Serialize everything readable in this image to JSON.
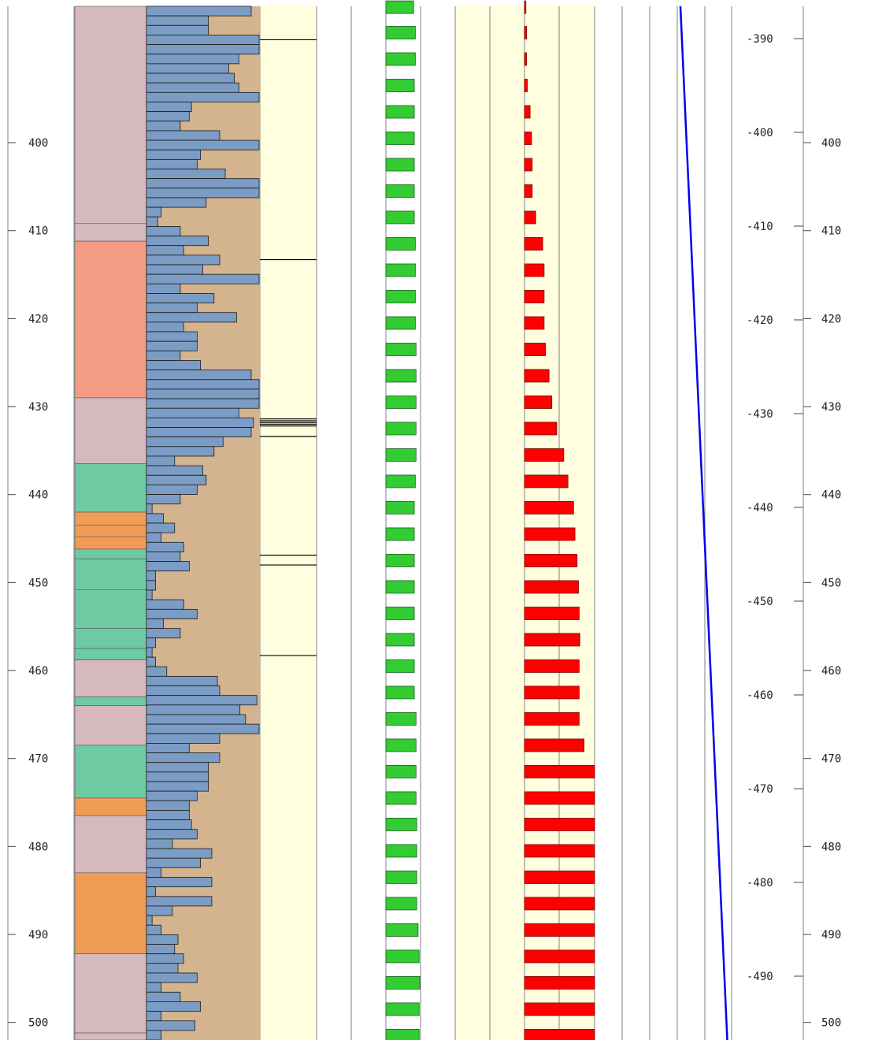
{
  "colors": {
    "lith_pink": "#d6b9bd",
    "lith_salmon": "#f29d83",
    "lith_orange": "#f09c57",
    "lith_green": "#6ecaa3",
    "grain_bg": "#d4b48e",
    "grain_bar": "#7b9cc4",
    "track_yellow": "#ffffe0",
    "green_bar": "#33cc33",
    "red_bar": "#ff0000",
    "curve_blue": "#0000ee",
    "grid": "#808080"
  },
  "chart_data": {
    "type": "well-log",
    "title": "",
    "depth_axis": {
      "label": "",
      "ticks": [
        400,
        410,
        420,
        430,
        440,
        450,
        460,
        470,
        480,
        490,
        500
      ],
      "tick_labels": [
        "400",
        "410",
        "420",
        "430",
        "440",
        "450",
        "460",
        "470",
        "480",
        "490",
        "500"
      ],
      "range": [
        384.5,
        502
      ]
    },
    "elevation_axis": {
      "label": "",
      "ticks": [
        -390,
        -400,
        -410,
        -420,
        -430,
        -440,
        -450,
        -460,
        -470,
        -480,
        -490
      ],
      "tick_labels": [
        "-390",
        "-400",
        "-410",
        "-420",
        "-430",
        "-440",
        "-450",
        "-460",
        "-470",
        "-480",
        "-490"
      ]
    },
    "lithology": {
      "name": "",
      "intervals": [
        {
          "top": 384.5,
          "base": 409.2,
          "class": "pink"
        },
        {
          "top": 409.2,
          "base": 411.2,
          "class": "pink"
        },
        {
          "top": 411.2,
          "base": 429.0,
          "class": "salmon"
        },
        {
          "top": 429.0,
          "base": 436.5,
          "class": "pink"
        },
        {
          "top": 436.5,
          "base": 442.0,
          "class": "green"
        },
        {
          "top": 442.0,
          "base": 443.5,
          "class": "orange"
        },
        {
          "top": 443.5,
          "base": 444.8,
          "class": "orange"
        },
        {
          "top": 444.8,
          "base": 446.2,
          "class": "orange"
        },
        {
          "top": 446.2,
          "base": 447.3,
          "class": "green"
        },
        {
          "top": 447.3,
          "base": 450.8,
          "class": "green"
        },
        {
          "top": 450.8,
          "base": 455.2,
          "class": "green"
        },
        {
          "top": 455.2,
          "base": 457.5,
          "class": "green"
        },
        {
          "top": 457.5,
          "base": 458.8,
          "class": "green"
        },
        {
          "top": 458.8,
          "base": 463.0,
          "class": "pink"
        },
        {
          "top": 463.0,
          "base": 464.0,
          "class": "green"
        },
        {
          "top": 464.0,
          "base": 468.5,
          "class": "pink"
        },
        {
          "top": 468.5,
          "base": 474.5,
          "class": "green"
        },
        {
          "top": 474.5,
          "base": 476.5,
          "class": "orange"
        },
        {
          "top": 476.5,
          "base": 483.0,
          "class": "pink"
        },
        {
          "top": 483.0,
          "base": 492.2,
          "class": "orange"
        },
        {
          "top": 492.2,
          "base": 501.2,
          "class": "pink"
        },
        {
          "top": 501.2,
          "base": 502.0,
          "class": "pink"
        }
      ]
    },
    "grain_log": {
      "name": "",
      "xlim": [
        0,
        10
      ],
      "values": [
        9.3,
        5.5,
        5.5,
        10,
        10,
        8.2,
        7.3,
        7.8,
        8.2,
        10,
        4,
        3.8,
        3,
        6.5,
        10,
        4.8,
        4.5,
        7,
        10,
        10,
        5.3,
        1.3,
        1,
        3,
        5.5,
        3.3,
        6.5,
        5,
        10,
        3,
        6,
        4.5,
        8,
        3.3,
        4.5,
        4.5,
        3,
        4.8,
        9.3,
        10,
        10,
        10,
        8.2,
        9.5,
        9.3,
        6.8,
        6,
        2.5,
        5,
        5.3,
        4.5,
        3,
        0.5,
        1.5,
        2.5,
        1.3,
        3.3,
        3,
        3.8,
        0.8,
        0.8,
        0.5,
        3.3,
        4.5,
        1.5,
        3,
        0.8,
        0.5,
        0.8,
        1.8,
        6.3,
        6.5,
        9.8,
        8.3,
        8.8,
        10,
        6.5,
        3.8,
        6.5,
        5.5,
        5.5,
        5.5,
        4.5,
        3.8,
        3.8,
        4,
        4.5,
        2.3,
        5.8,
        4.8,
        1.3,
        5.8,
        0.8,
        5.8,
        2.3,
        0.5,
        1.3,
        2.8,
        2.5,
        3.3,
        2.8,
        4.5,
        1.3,
        3,
        4.8,
        1.3,
        4.3,
        1.3
      ]
    },
    "marker_track": {
      "name": "",
      "depths": [
        388.3,
        413.3,
        431.4,
        431.6,
        431.8,
        432.0,
        432.2,
        433.4,
        446.9,
        448.0,
        458.3
      ]
    },
    "green_bars": {
      "name": "",
      "xlim": [
        0,
        10
      ],
      "depths": [
        384.6,
        387.5,
        390.5,
        393.5,
        396.5,
        399.5,
        402.5,
        405.5,
        408.5,
        411.5,
        414.5,
        417.5,
        420.5,
        423.5,
        426.5,
        429.5,
        432.5,
        435.5,
        438.5,
        441.5,
        444.5,
        447.5,
        450.5,
        453.5,
        456.5,
        459.5,
        462.5,
        465.5,
        468.5,
        471.5,
        474.5,
        477.5,
        480.5,
        483.5,
        486.5,
        489.5,
        492.5,
        495.5,
        498.5,
        501.5
      ],
      "values": [
        8,
        8.5,
        8.5,
        8.2,
        8.2,
        8.2,
        8.2,
        8.2,
        8.2,
        8.5,
        8.5,
        8.5,
        8.5,
        8.7,
        8.7,
        8.7,
        8.7,
        8.7,
        8.5,
        8.2,
        8.2,
        8.2,
        8.2,
        8.2,
        8.2,
        8.2,
        8.2,
        8.7,
        8.7,
        8.7,
        8.7,
        8.9,
        8.9,
        8.9,
        8.9,
        9.3,
        9.6,
        9.8,
        9.6,
        9.6
      ]
    },
    "red_bars": {
      "name": "",
      "xlim": [
        0,
        10
      ],
      "depths": [
        384.6,
        387.5,
        390.5,
        393.5,
        396.5,
        399.5,
        402.5,
        405.5,
        408.5,
        411.5,
        414.5,
        417.5,
        420.5,
        423.5,
        426.5,
        429.5,
        432.5,
        435.5,
        438.5,
        441.5,
        444.5,
        447.5,
        450.5,
        453.5,
        456.5,
        459.5,
        462.5,
        465.5,
        468.5,
        471.5,
        474.5,
        477.5,
        480.5,
        483.5,
        486.5,
        489.5,
        492.5,
        495.5,
        498.5,
        501.5
      ],
      "values": [
        0.2,
        0.3,
        0.3,
        0.4,
        0.8,
        1,
        1.1,
        1.1,
        1.6,
        2.6,
        2.8,
        2.8,
        2.8,
        3,
        3.5,
        3.9,
        4.6,
        5.6,
        6.2,
        7,
        7.2,
        7.5,
        7.7,
        7.8,
        7.9,
        7.8,
        7.8,
        7.8,
        8.5,
        10,
        10,
        10,
        10,
        10,
        10,
        10,
        10,
        10,
        10,
        10
      ]
    },
    "curve": {
      "name": "",
      "points": [
        [
          384.5,
          0.2
        ],
        [
          502,
          1.9
        ]
      ]
    }
  }
}
